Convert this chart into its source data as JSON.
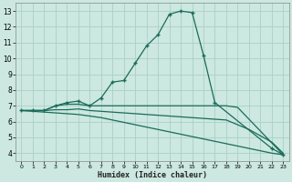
{
  "title": "",
  "xlabel": "Humidex (Indice chaleur)",
  "ylabel": "",
  "background_color": "#cce8e0",
  "grid_color": "#aacfc8",
  "line_color": "#1a6b5a",
  "xlim": [
    -0.5,
    23.5
  ],
  "ylim": [
    3.5,
    13.5
  ],
  "xticks": [
    0,
    1,
    2,
    3,
    4,
    5,
    6,
    7,
    8,
    9,
    10,
    11,
    12,
    13,
    14,
    15,
    16,
    17,
    18,
    19,
    20,
    21,
    22,
    23
  ],
  "yticks": [
    4,
    5,
    6,
    7,
    8,
    9,
    10,
    11,
    12,
    13
  ],
  "lines": [
    {
      "x": [
        0,
        1,
        2,
        3,
        4,
        5,
        6,
        7,
        8,
        9,
        10,
        11,
        12,
        13,
        14,
        15,
        16,
        17,
        22,
        23
      ],
      "y": [
        6.7,
        6.7,
        6.7,
        7.0,
        7.2,
        7.3,
        7.0,
        7.5,
        8.5,
        8.6,
        9.7,
        10.8,
        11.5,
        12.8,
        13.0,
        12.9,
        10.2,
        7.2,
        4.3,
        3.9
      ],
      "has_markers": true
    },
    {
      "x": [
        0,
        1,
        2,
        3,
        4,
        5,
        6,
        18,
        19,
        23
      ],
      "y": [
        6.7,
        6.7,
        6.7,
        7.0,
        7.1,
        7.1,
        7.0,
        7.0,
        6.9,
        3.9
      ],
      "has_markers": false
    },
    {
      "x": [
        0,
        1,
        2,
        3,
        4,
        5,
        6,
        7,
        8,
        9,
        10,
        11,
        12,
        13,
        14,
        15,
        16,
        17,
        18,
        19,
        20,
        21,
        22,
        23
      ],
      "y": [
        6.7,
        6.7,
        6.7,
        6.75,
        6.75,
        6.8,
        6.7,
        6.65,
        6.6,
        6.55,
        6.5,
        6.45,
        6.4,
        6.35,
        6.3,
        6.25,
        6.2,
        6.15,
        6.1,
        5.8,
        5.5,
        5.1,
        4.7,
        4.0
      ],
      "has_markers": false
    },
    {
      "x": [
        0,
        1,
        2,
        3,
        4,
        5,
        6,
        7,
        8,
        9,
        10,
        11,
        12,
        13,
        14,
        15,
        16,
        17,
        18,
        19,
        20,
        21,
        22,
        23
      ],
      "y": [
        6.7,
        6.65,
        6.6,
        6.55,
        6.5,
        6.45,
        6.35,
        6.25,
        6.1,
        5.95,
        5.8,
        5.65,
        5.5,
        5.35,
        5.2,
        5.05,
        4.9,
        4.75,
        4.6,
        4.45,
        4.3,
        4.15,
        4.0,
        3.9
      ],
      "has_markers": false
    }
  ]
}
